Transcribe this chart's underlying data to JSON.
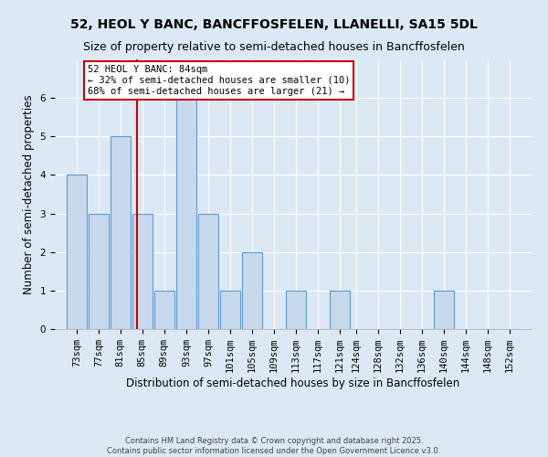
{
  "title_line1": "52, HEOL Y BANC, BANCFFOSFELEN, LLANELLI, SA15 5DL",
  "title_line2": "Size of property relative to semi-detached houses in Bancffosfelen",
  "xlabel": "Distribution of semi-detached houses by size in Bancffosfelen",
  "ylabel": "Number of semi-detached properties",
  "categories": [
    73,
    77,
    81,
    85,
    89,
    93,
    97,
    101,
    105,
    109,
    113,
    117,
    121,
    124,
    128,
    132,
    136,
    140,
    144,
    148,
    152
  ],
  "values": [
    4,
    3,
    5,
    3,
    1,
    6,
    3,
    1,
    2,
    0,
    1,
    0,
    1,
    0,
    0,
    0,
    0,
    1,
    0,
    0,
    0
  ],
  "bar_width": 3.6,
  "bar_color": "#c9d9ec",
  "bar_edge_color": "#5b9bd5",
  "bar_edge_width": 0.8,
  "subject_value": 84,
  "subject_label": "52 HEOL Y BANC: 84sqm",
  "pct_smaller": 32,
  "n_smaller": 10,
  "pct_larger": 68,
  "n_larger": 21,
  "vline_color": "#cc0000",
  "annotation_box_color": "#ffffff",
  "annotation_box_edge": "#cc0000",
  "ylim": [
    0,
    7
  ],
  "yticks": [
    0,
    1,
    2,
    3,
    4,
    5,
    6
  ],
  "background_color": "#dce9f5",
  "grid_color": "#ffffff",
  "footer": "Contains HM Land Registry data © Crown copyright and database right 2025.\nContains public sector information licensed under the Open Government Licence v3.0.",
  "title_fontsize": 10,
  "subtitle_fontsize": 9,
  "axis_label_fontsize": 8.5,
  "tick_fontsize": 7.5,
  "annotation_fontsize": 7.5,
  "footer_fontsize": 6
}
